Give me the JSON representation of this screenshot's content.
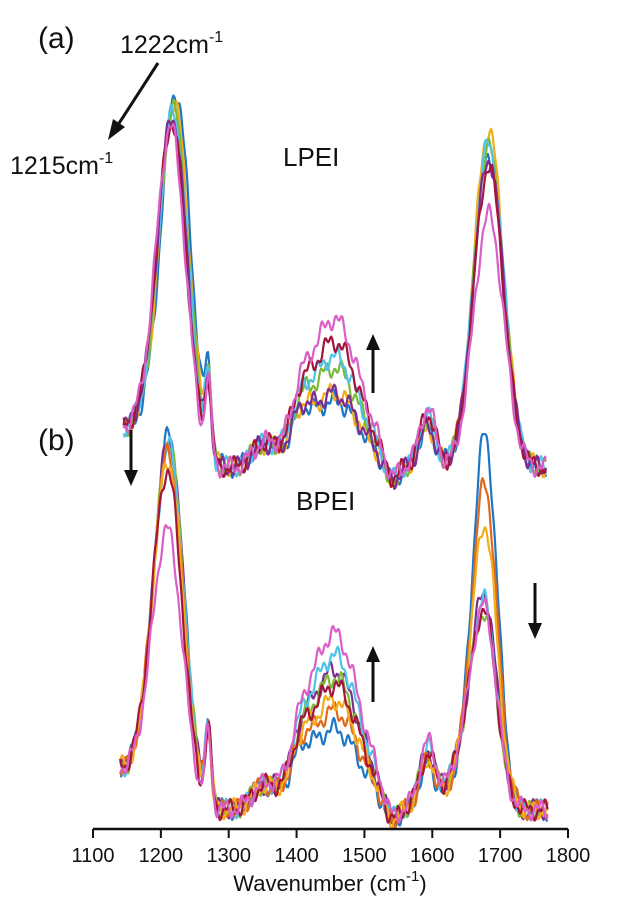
{
  "chart_data": {
    "type": "line",
    "xlabel": "Wavenumber (cm-1)",
    "xlim": [
      1100,
      1800
    ],
    "xticks": [
      1100,
      1200,
      1300,
      1400,
      1500,
      1600,
      1700,
      1800
    ],
    "grid": false,
    "legend": "none",
    "series_colors": [
      "#1f77c4",
      "#e06a1c",
      "#f2ad1b",
      "#7b2d91",
      "#7cb83a",
      "#4fc3e8",
      "#a3153a",
      "#d95fc6"
    ],
    "panels": [
      {
        "label": "(a)",
        "sample": "LPEI",
        "annotations": {
          "start_shift": {
            "text": "1222cm",
            "sup": "-1"
          },
          "end_shift": {
            "text": "1215cm",
            "sup": "-1"
          },
          "mid_arrow": "up"
        },
        "series": [
          {
            "color": "#1f77c4",
            "peak1_x": 1222,
            "peak1": 1.0,
            "peak2": 0.84,
            "mid": 0.18
          },
          {
            "color": "#f2ad1b",
            "peak1_x": 1220,
            "peak1": 0.97,
            "peak2": 0.91,
            "mid": 0.2
          },
          {
            "color": "#7cb83a",
            "peak1_x": 1219,
            "peak1": 0.95,
            "peak2": 0.86,
            "mid": 0.27
          },
          {
            "color": "#4fc3e8",
            "peak1_x": 1218,
            "peak1": 0.94,
            "peak2": 0.87,
            "mid": 0.3
          },
          {
            "color": "#7b2d91",
            "peak1_x": 1217,
            "peak1": 0.93,
            "peak2": 0.83,
            "mid": 0.2
          },
          {
            "color": "#a3153a",
            "peak1_x": 1216,
            "peak1": 0.91,
            "peak2": 0.81,
            "mid": 0.34
          },
          {
            "color": "#d95fc6",
            "peak1_x": 1215,
            "peak1": 0.9,
            "peak2": 0.68,
            "mid": 0.4
          }
        ]
      },
      {
        "label": "(b)",
        "sample": "BPEI",
        "annotations": {
          "left_arrow": "down",
          "mid_arrow": "up",
          "right_arrow": "down"
        },
        "series": [
          {
            "color": "#1f77c4",
            "peak1_x": 1212,
            "peak1": 1.0,
            "peak2": 0.98,
            "mid": 0.22
          },
          {
            "color": "#7b2d91",
            "peak1_x": 1212,
            "peak1": 0.99,
            "peak2": 0.52,
            "mid": 0.38
          },
          {
            "color": "#7cb83a",
            "peak1_x": 1212,
            "peak1": 0.98,
            "peak2": 0.46,
            "mid": 0.36
          },
          {
            "color": "#4fc3e8",
            "peak1_x": 1212,
            "peak1": 0.97,
            "peak2": 0.5,
            "mid": 0.42
          },
          {
            "color": "#e06a1c",
            "peak1_x": 1211,
            "peak1": 0.95,
            "peak2": 0.84,
            "mid": 0.27
          },
          {
            "color": "#f2ad1b",
            "peak1_x": 1211,
            "peak1": 0.93,
            "peak2": 0.72,
            "mid": 0.3
          },
          {
            "color": "#a3153a",
            "peak1_x": 1210,
            "peak1": 0.9,
            "peak2": 0.47,
            "mid": 0.34
          },
          {
            "color": "#d95fc6",
            "peak1_x": 1210,
            "peak1": 0.74,
            "peak2": 0.48,
            "mid": 0.48
          }
        ]
      }
    ]
  }
}
